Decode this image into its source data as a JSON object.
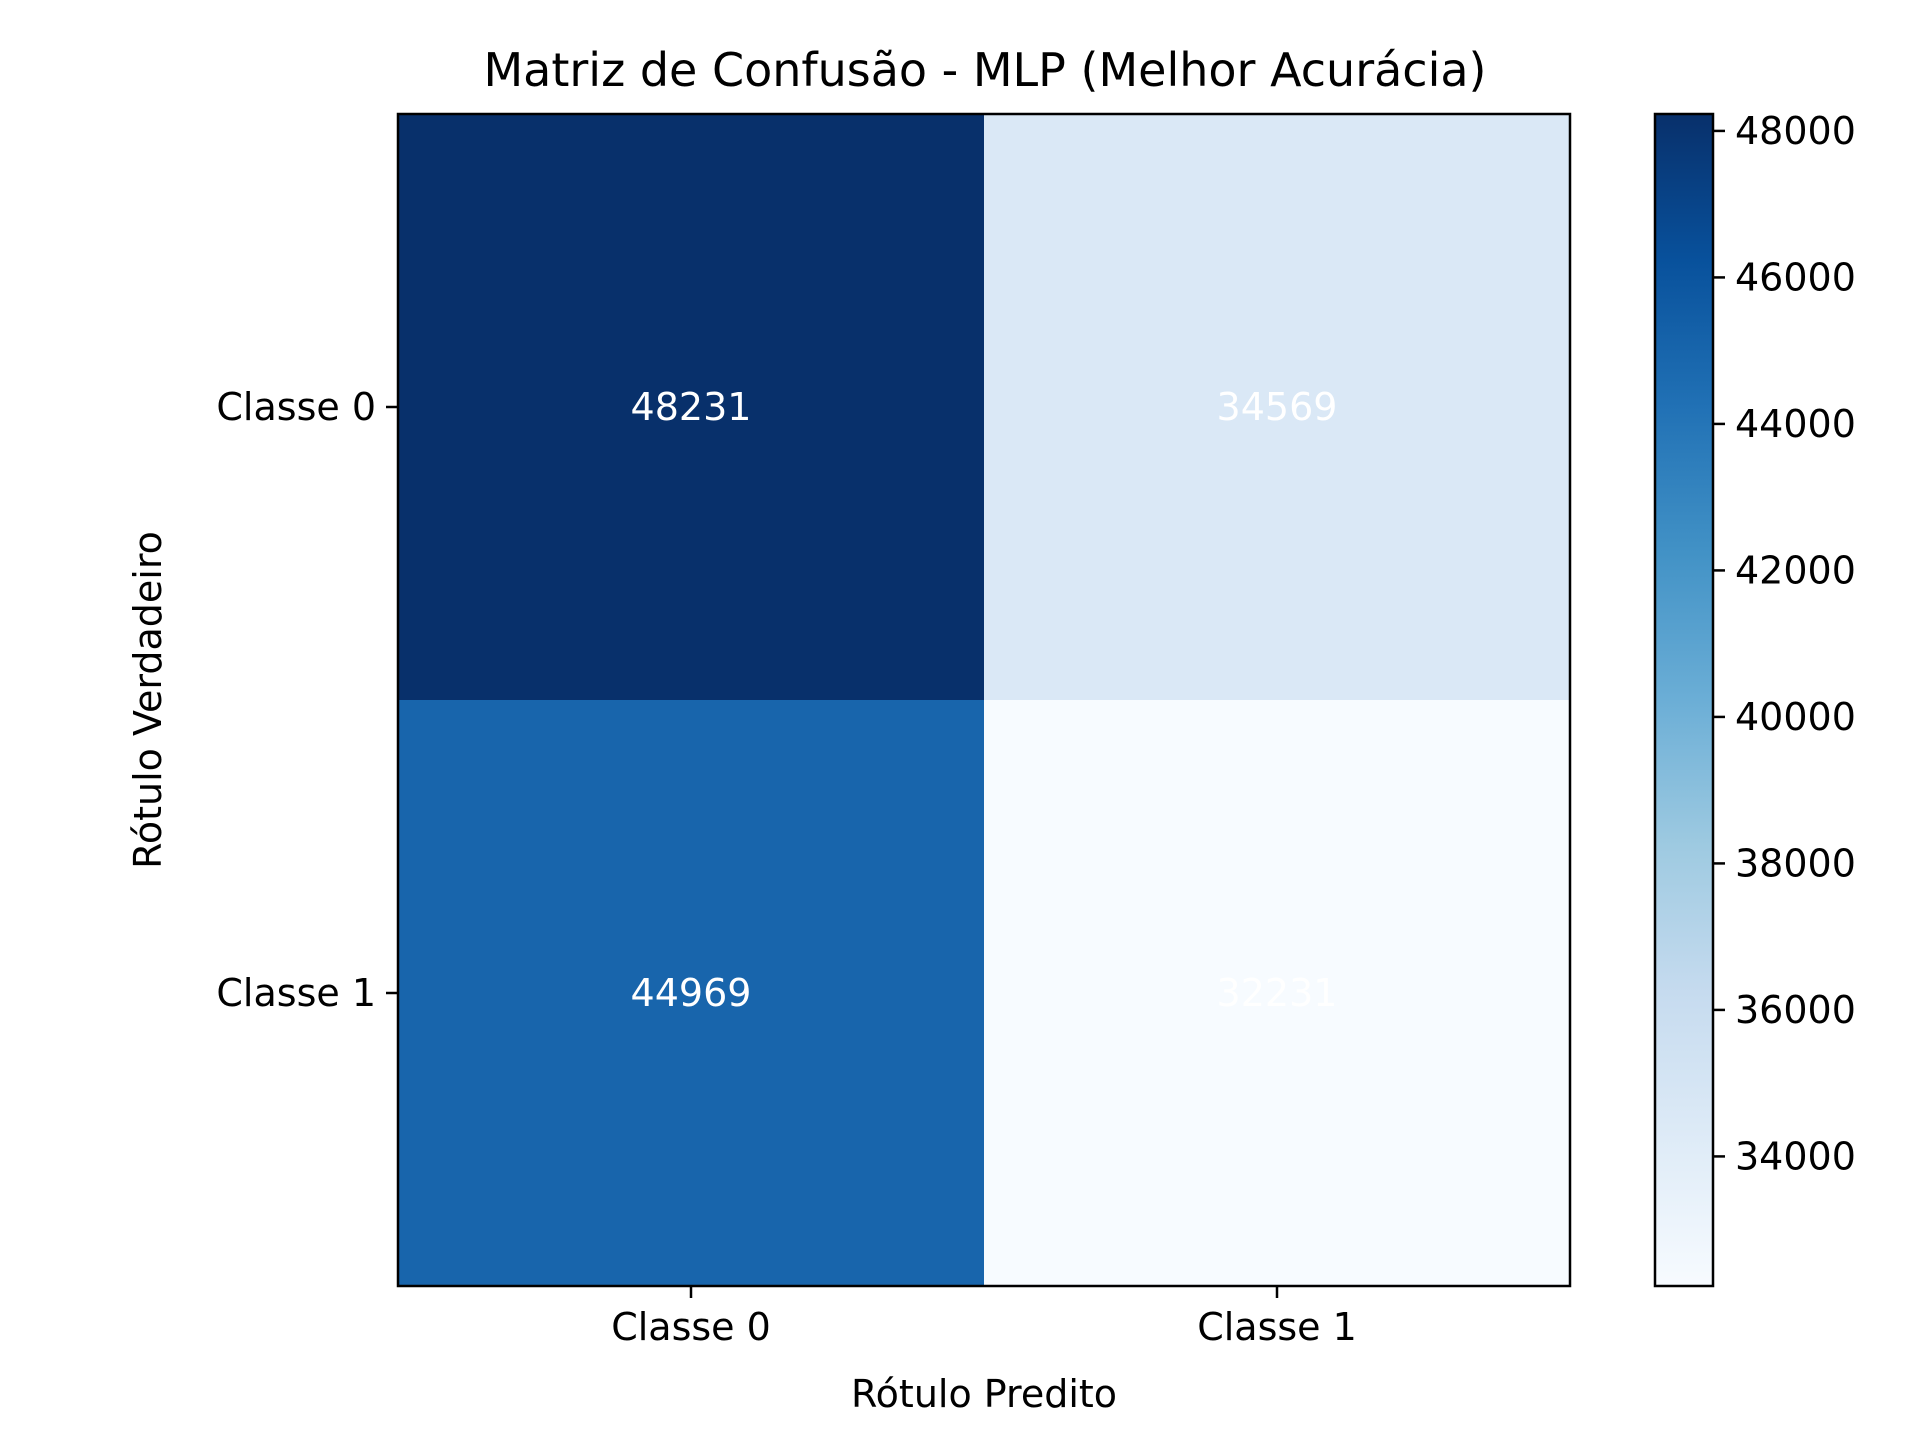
{
  "chart_data": {
    "type": "heatmap",
    "title": "Matriz de Confusão - MLP (Melhor Acurácia)",
    "xlabel": "Rótulo Predito",
    "ylabel": "Rótulo Verdadeiro",
    "x_categories": [
      "Classe 0",
      "Classe 1"
    ],
    "y_categories": [
      "Classe 0",
      "Classe 1"
    ],
    "values": [
      [
        48231,
        34569
      ],
      [
        44969,
        32231
      ]
    ],
    "colormap": "Blues",
    "colorbar": {
      "range": [
        32231,
        48231
      ],
      "ticks": [
        34000,
        36000,
        38000,
        40000,
        42000,
        44000,
        46000,
        48000
      ]
    },
    "annotation_color": "#ffffff",
    "grid": false
  }
}
